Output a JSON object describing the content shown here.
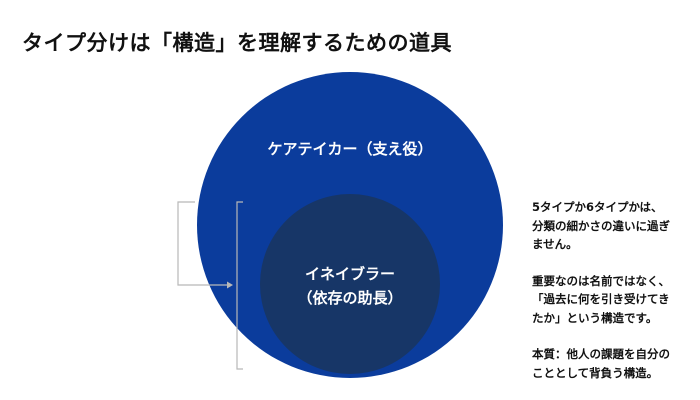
{
  "title": "タイプ分けは「構造」を理解するための道具",
  "outer_circle": {
    "label": "ケアテイカー（支え役）",
    "color": "#0b3c9c"
  },
  "inner_circle": {
    "label_line1": "イネイブラー",
    "label_line2": "（依存の助長）",
    "color": "#173667"
  },
  "notes": [
    [
      "5タイプか6タイプかは、",
      "分類の細かさの違いに過ぎ",
      "ません。"
    ],
    [
      "重要なのは名前ではなく、",
      "「過去に何を引き受けてき",
      "たか」という構造です。"
    ],
    [
      "本質：他人の課題を自分の",
      "こととして背負う構造。"
    ]
  ],
  "colors": {
    "bracket": "#b8b8b8",
    "text": "#111111"
  }
}
